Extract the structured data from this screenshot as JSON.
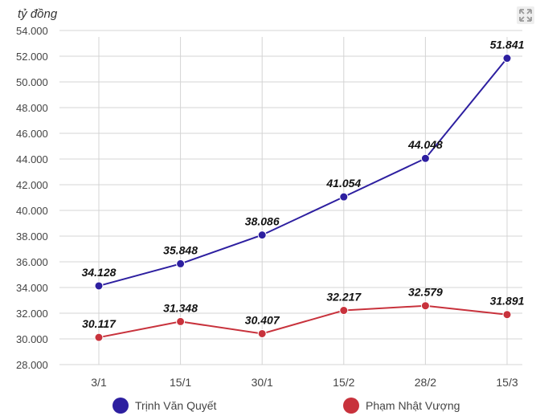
{
  "chart_data": {
    "type": "line",
    "unit_label": "tỷ đồng",
    "categories": [
      "3/1",
      "15/1",
      "30/1",
      "15/2",
      "28/2",
      "15/3"
    ],
    "ylim": [
      28000,
      54000
    ],
    "yticks": [
      "28.000",
      "30.000",
      "32.000",
      "34.000",
      "36.000",
      "38.000",
      "40.000",
      "42.000",
      "44.000",
      "46.000",
      "48.000",
      "50.000",
      "52.000",
      "54.000"
    ],
    "grid": true,
    "legend_position": "bottom",
    "series": [
      {
        "name": "Trịnh Văn Quyết",
        "color": "#2d1fa0",
        "values": [
          34128,
          35848,
          38086,
          41054,
          44048,
          51841
        ],
        "labels": [
          "34.128",
          "35.848",
          "38.086",
          "41.054",
          "44.048",
          "51.841"
        ]
      },
      {
        "name": "Phạm Nhật Vượng",
        "color": "#c8323c",
        "values": [
          30117,
          31348,
          30407,
          32217,
          32579,
          31891
        ],
        "labels": [
          "30.117",
          "31.348",
          "30.407",
          "32.217",
          "32.579",
          "31.891"
        ]
      }
    ]
  },
  "toolbar": {
    "fullscreen_icon": "fullscreen-icon"
  }
}
